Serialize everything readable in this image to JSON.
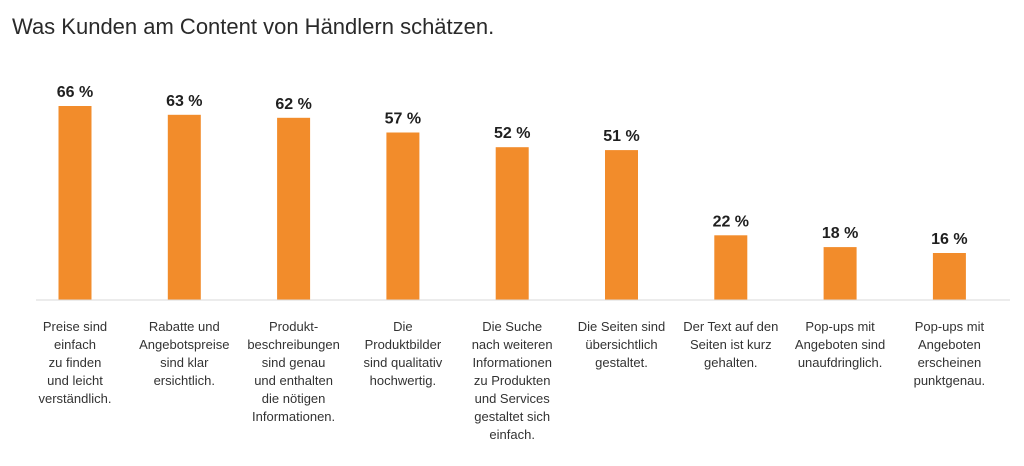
{
  "title": "Was Kunden am Content von Händlern schätzen.",
  "chart_data": {
    "type": "bar",
    "title": "Was Kunden am Content von Händlern schätzen.",
    "categories": [
      "Preise sind\neinfach\nzu finden\nund leicht\nverständlich.",
      "Rabatte und\nAngebotspreise\nsind klar\nersichtlich.",
      "Produkt-\nbeschreibungen\nsind genau\nund enthalten\ndie nötigen\nInformationen.",
      "Die\nProduktbilder\nsind qualitativ\nhochwertig.",
      "Die Suche\nnach weiteren\nInformationen\nzu Produkten\nund Services\ngestaltet sich\neinfach.",
      "Die Seiten sind\nübersichtlich\ngestaltet.",
      "Der Text auf den\nSeiten ist kurz\ngehalten.",
      "Pop-ups mit\nAngeboten sind\nunaufdringlich.",
      "Pop-ups mit\nAngeboten\nerscheinen\npunktgenau."
    ],
    "values": [
      66,
      63,
      62,
      57,
      52,
      51,
      22,
      18,
      16
    ],
    "value_labels": [
      "66 %",
      "63 %",
      "62 %",
      "57 %",
      "52 %",
      "51 %",
      "22 %",
      "18 %",
      "16 %"
    ],
    "ylim": [
      0,
      66
    ],
    "xlabel": "",
    "ylabel": "",
    "grid": false,
    "bar_color": "#f28c2b",
    "baseline_color": "#d9d9d9"
  }
}
